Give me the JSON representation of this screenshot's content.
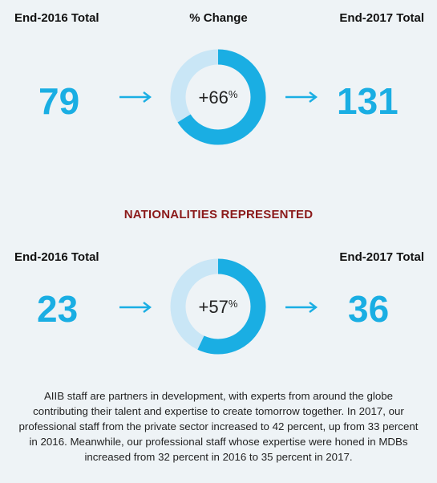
{
  "top": {
    "left_header": "End-2016 Total",
    "center_header": "% Change",
    "right_header": "End-2017 Total",
    "start_value": "79",
    "change_value": "+66",
    "change_unit": "%",
    "change_fraction": 0.66,
    "end_value": "131"
  },
  "nationalities": {
    "title": "NATIONALITIES REPRESENTED",
    "left_header": "End-2016 Total",
    "right_header": "End-2017 Total",
    "start_value": "23",
    "change_value": "+57",
    "change_unit": "%",
    "change_fraction": 0.57,
    "end_value": "36"
  },
  "paragraph": "AIIB staff are partners in development, with experts from around the globe contributing their talent and expertise to create tomorrow together. In 2017, our professional staff from the private sector increased to 42 percent, up from 33 percent in 2016. Meanwhile, our professional staff whose expertise were honed in MDBs increased from 32 percent in 2016 to 35 percent in 2017.",
  "colors": {
    "accent": "#1aaee3",
    "donut_light": "#c9e6f6",
    "title_red": "#8b1a1a"
  },
  "icons": [
    "arrow-right-icon"
  ]
}
